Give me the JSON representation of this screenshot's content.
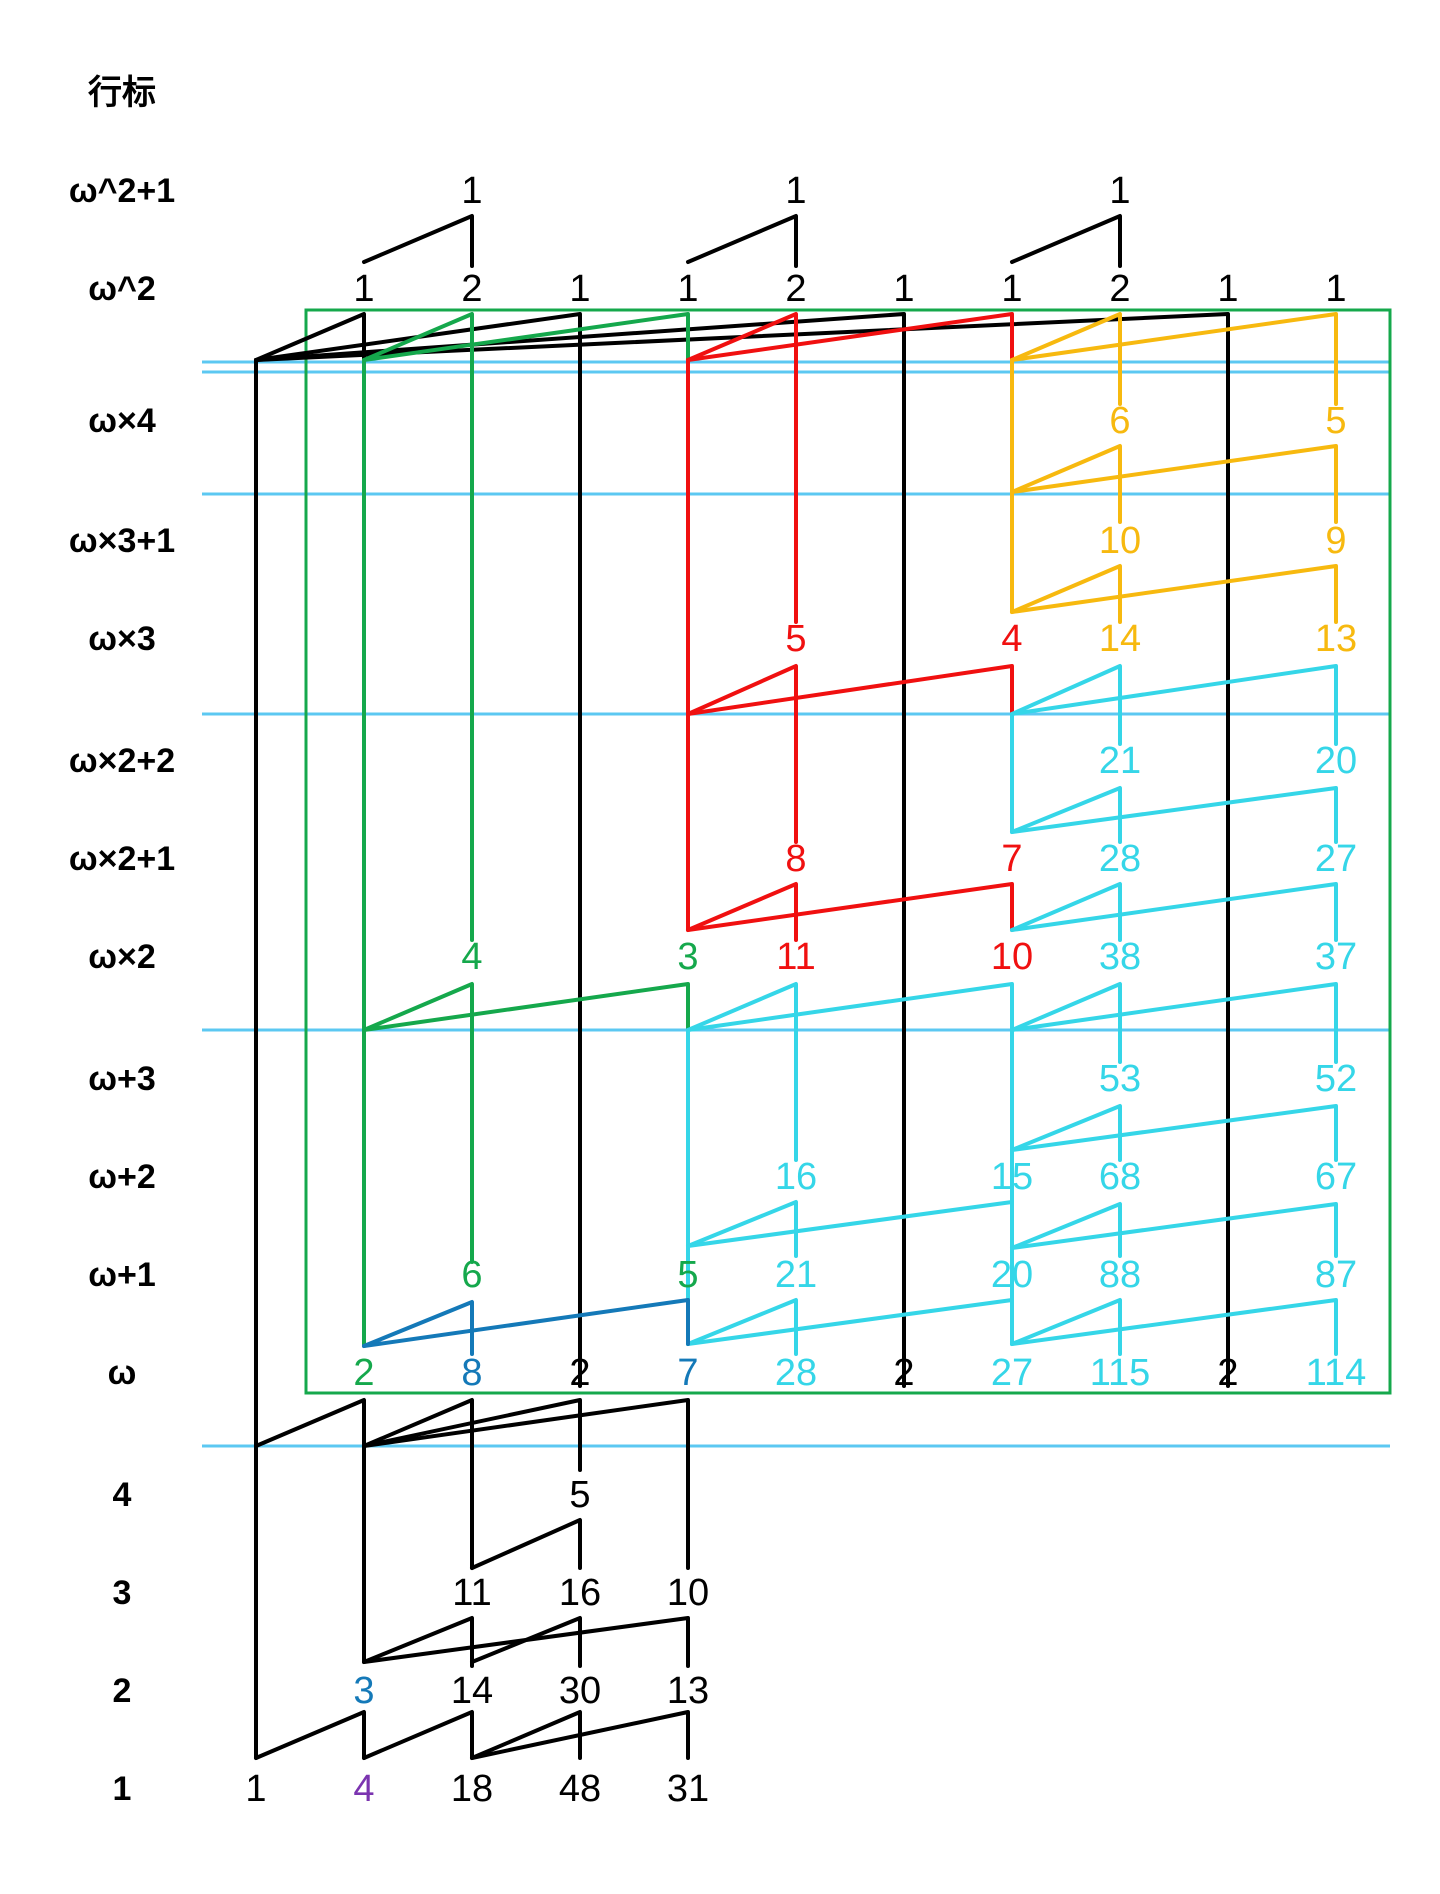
{
  "header": {
    "title": "行标"
  },
  "colors": {
    "black": "#000000",
    "green": "#15a84c",
    "red": "#f01010",
    "yellow": "#f7b90f",
    "cyan": "#35d6e8",
    "blue": "#1479b8",
    "purple": "#7b34b0",
    "guide": "#5cc8f2",
    "frame": "#15a84c"
  },
  "rows": [
    {
      "label": "ω^2+1",
      "nums": [
        {
          "col": 3,
          "text": "1",
          "color": "black"
        },
        {
          "col": 6,
          "text": "1",
          "color": "black"
        },
        {
          "col": 9,
          "text": "1",
          "color": "black"
        }
      ]
    },
    {
      "label": "ω^2",
      "nums": [
        {
          "col": 2,
          "text": "1",
          "color": "black"
        },
        {
          "col": 3,
          "text": "2",
          "color": "black"
        },
        {
          "col": 4,
          "text": "1",
          "color": "black"
        },
        {
          "col": 5,
          "text": "1",
          "color": "black"
        },
        {
          "col": 6,
          "text": "2",
          "color": "black"
        },
        {
          "col": 7,
          "text": "1",
          "color": "black"
        },
        {
          "col": 8,
          "text": "1",
          "color": "black"
        },
        {
          "col": 9,
          "text": "2",
          "color": "black"
        },
        {
          "col": 10,
          "text": "1",
          "color": "black"
        },
        {
          "col": 11,
          "text": "1",
          "color": "black"
        }
      ]
    },
    {
      "label": "ω×4",
      "nums": [
        {
          "col": 9,
          "text": "6",
          "color": "yellow"
        },
        {
          "col": 11,
          "text": "5",
          "color": "yellow"
        }
      ]
    },
    {
      "label": "ω×3+1",
      "nums": [
        {
          "col": 9,
          "text": "10",
          "color": "yellow"
        },
        {
          "col": 11,
          "text": "9",
          "color": "yellow"
        }
      ]
    },
    {
      "label": "ω×3",
      "nums": [
        {
          "col": 6,
          "text": "5",
          "color": "red"
        },
        {
          "col": 8,
          "text": "4",
          "color": "red"
        },
        {
          "col": 9,
          "text": "14",
          "color": "yellow"
        },
        {
          "col": 11,
          "text": "13",
          "color": "yellow"
        }
      ]
    },
    {
      "label": "ω×2+2",
      "nums": [
        {
          "col": 9,
          "text": "21",
          "color": "cyan"
        },
        {
          "col": 11,
          "text": "20",
          "color": "cyan"
        }
      ]
    },
    {
      "label": "ω×2+1",
      "nums": [
        {
          "col": 6,
          "text": "8",
          "color": "red"
        },
        {
          "col": 8,
          "text": "7",
          "color": "red"
        },
        {
          "col": 9,
          "text": "28",
          "color": "cyan"
        },
        {
          "col": 11,
          "text": "27",
          "color": "cyan"
        }
      ]
    },
    {
      "label": "ω×2",
      "nums": [
        {
          "col": 3,
          "text": "4",
          "color": "green"
        },
        {
          "col": 5,
          "text": "3",
          "color": "green"
        },
        {
          "col": 6,
          "text": "11",
          "color": "red"
        },
        {
          "col": 8,
          "text": "10",
          "color": "red"
        },
        {
          "col": 9,
          "text": "38",
          "color": "cyan"
        },
        {
          "col": 11,
          "text": "37",
          "color": "cyan"
        }
      ]
    },
    {
      "label": "ω+3",
      "nums": [
        {
          "col": 9,
          "text": "53",
          "color": "cyan"
        },
        {
          "col": 11,
          "text": "52",
          "color": "cyan"
        }
      ]
    },
    {
      "label": "ω+2",
      "nums": [
        {
          "col": 6,
          "text": "16",
          "color": "cyan"
        },
        {
          "col": 8,
          "text": "15",
          "color": "cyan"
        },
        {
          "col": 9,
          "text": "68",
          "color": "cyan"
        },
        {
          "col": 11,
          "text": "67",
          "color": "cyan"
        }
      ]
    },
    {
      "label": "ω+1",
      "nums": [
        {
          "col": 3,
          "text": "6",
          "color": "green"
        },
        {
          "col": 5,
          "text": "5",
          "color": "green"
        },
        {
          "col": 6,
          "text": "21",
          "color": "cyan"
        },
        {
          "col": 8,
          "text": "20",
          "color": "cyan"
        },
        {
          "col": 9,
          "text": "88",
          "color": "cyan"
        },
        {
          "col": 11,
          "text": "87",
          "color": "cyan"
        }
      ]
    },
    {
      "label": "ω",
      "nums": [
        {
          "col": 2,
          "text": "2",
          "color": "green"
        },
        {
          "col": 3,
          "text": "8",
          "color": "blue"
        },
        {
          "col": 4,
          "text": "2",
          "color": "black"
        },
        {
          "col": 5,
          "text": "7",
          "color": "blue"
        },
        {
          "col": 6,
          "text": "28",
          "color": "cyan"
        },
        {
          "col": 7,
          "text": "2",
          "color": "black"
        },
        {
          "col": 8,
          "text": "27",
          "color": "cyan"
        },
        {
          "col": 9,
          "text": "115",
          "color": "cyan"
        },
        {
          "col": 10,
          "text": "2",
          "color": "black"
        },
        {
          "col": 11,
          "text": "114",
          "color": "cyan"
        }
      ]
    },
    {
      "label": "4",
      "nums": [
        {
          "col": 4,
          "text": "5",
          "color": "black"
        }
      ]
    },
    {
      "label": "3",
      "nums": [
        {
          "col": 3,
          "text": "11",
          "color": "black"
        },
        {
          "col": 4,
          "text": "16",
          "color": "black"
        },
        {
          "col": 5,
          "text": "10",
          "color": "black"
        }
      ]
    },
    {
      "label": "2",
      "nums": [
        {
          "col": 2,
          "text": "3",
          "color": "blue"
        },
        {
          "col": 3,
          "text": "14",
          "color": "black"
        },
        {
          "col": 4,
          "text": "30",
          "color": "black"
        },
        {
          "col": 5,
          "text": "13",
          "color": "black"
        }
      ]
    },
    {
      "label": "1",
      "nums": [
        {
          "col": 1,
          "text": "1",
          "color": "black"
        },
        {
          "col": 2,
          "text": "4",
          "color": "purple"
        },
        {
          "col": 3,
          "text": "18",
          "color": "black"
        },
        {
          "col": 4,
          "text": "48",
          "color": "black"
        },
        {
          "col": 5,
          "text": "31",
          "color": "black"
        }
      ]
    }
  ]
}
